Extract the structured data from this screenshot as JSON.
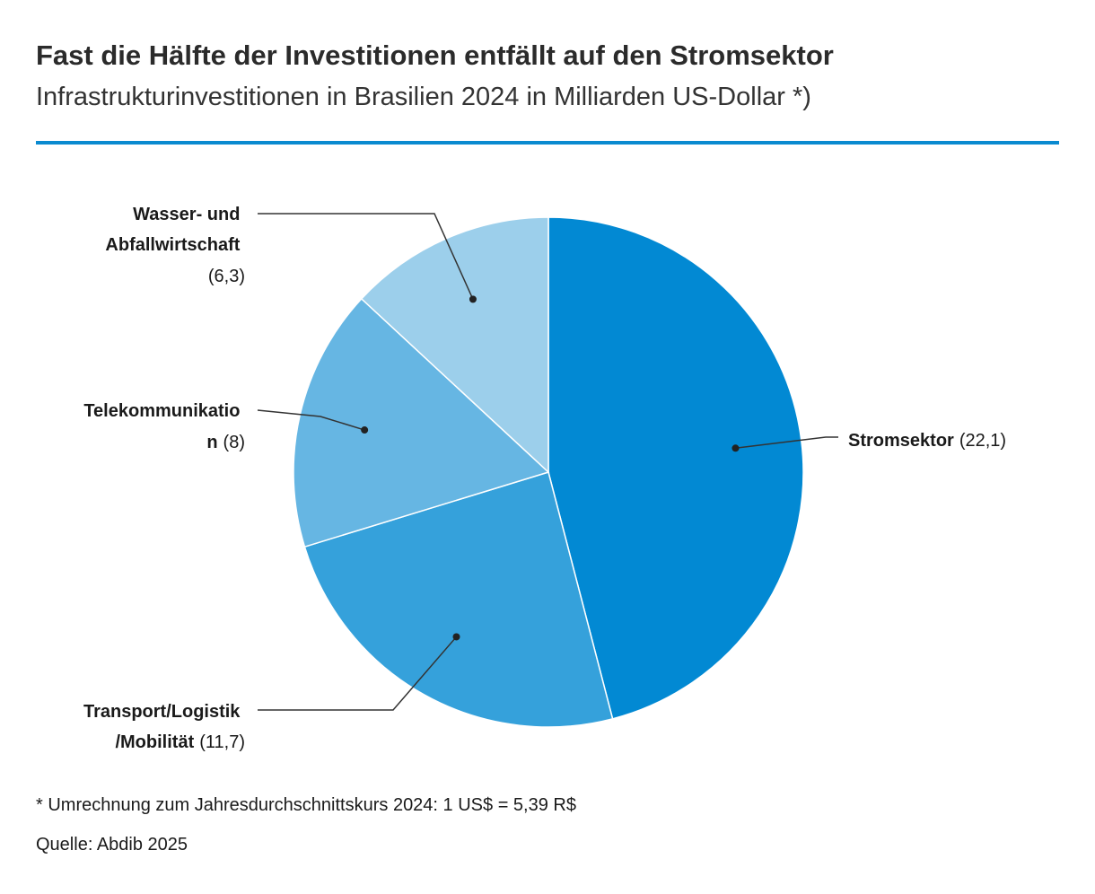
{
  "header": {
    "title": "Fast die Hälfte der Investitionen entfällt auf den Stromsektor",
    "subtitle": "Infrastrukturinvestitionen in Brasilien 2024 in Milliarden US-Dollar *)"
  },
  "footer": {
    "note": "* Umrechnung zum Jahresdurchschnittskurs 2024: 1 US$ = 5,39 R$",
    "source": "Quelle: Abdib 2025"
  },
  "colors": {
    "accent": "#0a8ad0",
    "slice_outline": "#ffffff",
    "leader": "#333333"
  },
  "chart_data": {
    "type": "pie",
    "start": "12 o'clock",
    "direction": "clockwise",
    "slices": [
      {
        "label": "Stromsektor",
        "value": 22.1,
        "value_text": "(22,1)",
        "label_lines": [
          "Stromsektor"
        ],
        "color": "#0289d3"
      },
      {
        "label": "Transport/Logistik/Mobilität",
        "value": 11.7,
        "value_text": "(11,7)",
        "label_lines": [
          "Transport/Logistik",
          "/Mobilität"
        ],
        "color": "#35a1db"
      },
      {
        "label": "Telekommunikation",
        "value": 8,
        "value_text": "(8)",
        "label_lines": [
          "Telekommunikatio",
          "n"
        ],
        "color": "#66b6e3"
      },
      {
        "label": "Wasser- und Abfallwirtschaft",
        "value": 6.3,
        "value_text": "(6,3)",
        "label_lines": [
          "Wasser- und",
          "Abfallwirtschaft"
        ],
        "color": "#9ccfeb"
      }
    ]
  }
}
